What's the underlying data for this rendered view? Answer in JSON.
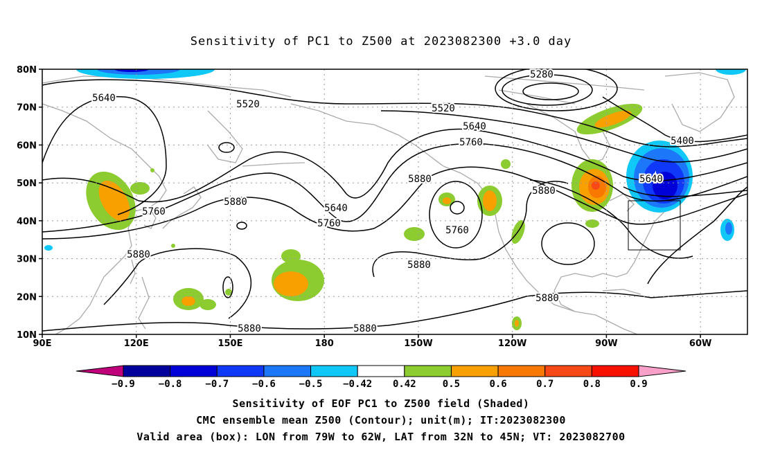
{
  "title": "Sensitivity of PC1 to Z500 at 2023082300 +3.0 day",
  "map": {
    "lat_labels": [
      "80N",
      "70N",
      "60N",
      "50N",
      "40N",
      "30N",
      "20N",
      "10N"
    ],
    "lon_labels": [
      "90E",
      "120E",
      "150E",
      "180",
      "150W",
      "120W",
      "90W",
      "60W"
    ],
    "lat_range": [
      10,
      80
    ],
    "lon_range_degrees_east": [
      90,
      315
    ],
    "grid": "dotted",
    "coastline_color": "#aaaaaa",
    "contour_color": "#000000",
    "contour_labels": [
      "5280",
      "5400",
      "5520",
      "5520",
      "5640",
      "5640",
      "5640",
      "5640",
      "5760",
      "5760",
      "5760",
      "5760",
      "5880",
      "5880",
      "5880",
      "5880",
      "5880",
      "5880",
      "5880",
      "5880"
    ],
    "valid_box": {
      "lon_west": "79W",
      "lon_east": "62W",
      "lat_south": "32N",
      "lat_north": "45N"
    }
  },
  "colorbar": {
    "ticks": [
      "-0.9",
      "-0.8",
      "-0.7",
      "-0.6",
      "-0.5",
      "-0.42",
      "0.42",
      "0.5",
      "0.6",
      "0.7",
      "0.8",
      "0.9"
    ],
    "colors": [
      "#c0007a",
      "#00009c",
      "#0000d8",
      "#1038f8",
      "#1c78f8",
      "#10c8f8",
      "#ffffff",
      "#8ccc30",
      "#f8a000",
      "#f87800",
      "#f84818",
      "#f81000",
      "#f8a0c8"
    ]
  },
  "captions": {
    "line1": "Sensitivity of EOF PC1 to Z500 field (Shaded)",
    "line2": "CMC ensemble mean Z500 (Contour); unit(m); IT:2023082300",
    "line3": "Valid area (box): LON from 79W to 62W, LAT from 32N to 45N; VT: 2023082700"
  }
}
